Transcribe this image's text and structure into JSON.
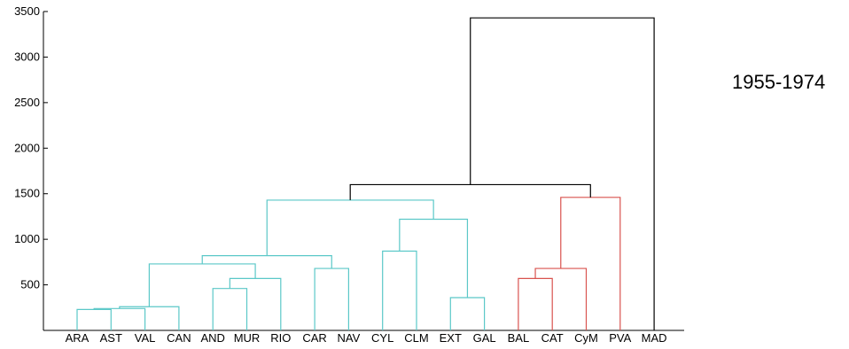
{
  "chart_data": {
    "type": "dendrogram",
    "title": "1955-1974",
    "yticks": [
      500,
      1000,
      1500,
      2000,
      2500,
      3000,
      3500
    ],
    "ylim": [
      0,
      3500
    ],
    "leaves": [
      "ARA",
      "AST",
      "VAL",
      "CAN",
      "AND",
      "MUR",
      "RIO",
      "CAR",
      "NAV",
      "CYL",
      "CLM",
      "EXT",
      "GAL",
      "BAL",
      "CAT",
      "CyM",
      "PVA",
      "MAD"
    ],
    "colors": {
      "cluster_a": "#5bc8c8",
      "cluster_b": "#d9534f",
      "root": "#000000"
    },
    "links": [
      {
        "left": "ARA",
        "right": "AST",
        "height": 230,
        "color": "cluster_a"
      },
      {
        "left": "ARA+AST",
        "right": "VAL",
        "height": 240,
        "color": "cluster_a"
      },
      {
        "left": "ARA+AST+VAL",
        "right": "CAN",
        "height": 260,
        "color": "cluster_a"
      },
      {
        "left": "AND",
        "right": "MUR",
        "height": 460,
        "color": "cluster_a"
      },
      {
        "left": "AND+MUR",
        "right": "RIO",
        "height": 570,
        "color": "cluster_a"
      },
      {
        "left": "ARA..CAN",
        "right": "AND..RIO",
        "height": 730,
        "color": "cluster_a"
      },
      {
        "left": "CAR",
        "right": "NAV",
        "height": 680,
        "color": "cluster_a"
      },
      {
        "left": "ARA..RIO",
        "right": "CAR+NAV",
        "height": 820,
        "color": "cluster_a"
      },
      {
        "left": "CYL",
        "right": "CLM",
        "height": 870,
        "color": "cluster_a"
      },
      {
        "left": "EXT",
        "right": "GAL",
        "height": 360,
        "color": "cluster_a"
      },
      {
        "left": "CYL+CLM",
        "right": "EXT+GAL",
        "height": 1220,
        "color": "cluster_a"
      },
      {
        "left": "ARA..NAV",
        "right": "CYL..GAL",
        "height": 1430,
        "color": "cluster_a"
      },
      {
        "left": "BAL",
        "right": "CAT",
        "height": 570,
        "color": "cluster_b"
      },
      {
        "left": "BAL+CAT",
        "right": "CyM",
        "height": 680,
        "color": "cluster_b"
      },
      {
        "left": "BAL..CyM",
        "right": "PVA",
        "height": 1460,
        "color": "cluster_b"
      },
      {
        "left": "ARA..GAL",
        "right": "BAL..PVA",
        "height": 1600,
        "color": "root"
      },
      {
        "left": "ARA..PVA",
        "right": "MAD",
        "height": 3430,
        "color": "root"
      }
    ]
  }
}
